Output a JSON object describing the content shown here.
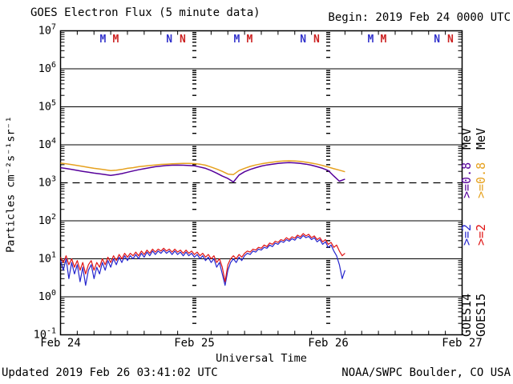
{
  "header": {
    "title": "GOES Electron Flux (5 minute data)",
    "begin_label": "Begin: 2019 Feb 24 0000 UTC"
  },
  "footer": {
    "updated": "Updated 2019 Feb 26 03:41:02 UTC",
    "source": "NOAA/SWPC Boulder, CO USA"
  },
  "colors": {
    "trace_goes15_e08": "#E6A11E",
    "trace_goes14_e08": "#56009B",
    "trace_goes15_e2": "#E01515",
    "trace_goes14_e2": "#2525CD",
    "marker_blue": "#3333CC",
    "marker_red": "#CC2222",
    "axis": "#000000",
    "background": "#FFFFFF"
  },
  "chart_data": {
    "type": "line",
    "title": "GOES Electron Flux (5 minute data)",
    "xlabel": "Universal Time",
    "ylabel": "Particles cm⁻²s⁻¹sr⁻¹",
    "x_axis": {
      "label": "Universal Time",
      "start": "2019 Feb 24 0000 UTC",
      "hours_span": 72,
      "tick_labels": [
        "Feb 24",
        "Feb 25",
        "Feb 26",
        "Feb 27"
      ],
      "day_boundary_hours": [
        24,
        48
      ],
      "minor_tick_hours": 3
    },
    "y_axis": {
      "scale": "log",
      "unit_label": "Particles cm⁻²s⁻¹sr⁻¹",
      "exponent_min": -1,
      "exponent_max": 7,
      "tick_exponents": [
        7,
        6,
        5,
        4,
        3,
        2,
        1,
        0,
        -1
      ]
    },
    "threshold_line": {
      "value": 1000,
      "style": "dashed"
    },
    "top_markers": [
      {
        "hour": 7.6,
        "letter": "M",
        "color_key": "marker_blue"
      },
      {
        "hour": 9.9,
        "letter": "M",
        "color_key": "marker_red"
      },
      {
        "hour": 19.5,
        "letter": "N",
        "color_key": "marker_blue"
      },
      {
        "hour": 21.9,
        "letter": "N",
        "color_key": "marker_red"
      },
      {
        "hour": 31.6,
        "letter": "M",
        "color_key": "marker_blue"
      },
      {
        "hour": 33.9,
        "letter": "M",
        "color_key": "marker_red"
      },
      {
        "hour": 43.5,
        "letter": "N",
        "color_key": "marker_blue"
      },
      {
        "hour": 45.9,
        "letter": "N",
        "color_key": "marker_red"
      },
      {
        "hour": 55.6,
        "letter": "M",
        "color_key": "marker_blue"
      },
      {
        "hour": 57.9,
        "letter": "M",
        "color_key": "marker_red"
      },
      {
        "hour": 67.5,
        "letter": "N",
        "color_key": "marker_blue"
      },
      {
        "hour": 69.9,
        "letter": "N",
        "color_key": "marker_red"
      }
    ],
    "series": [
      {
        "name": "GOES14 >=0.8 MeV",
        "color_key": "trace_goes14_e08",
        "t_start_hours": 0,
        "t_step_hours": 1,
        "values": [
          2500,
          2380,
          2250,
          2120,
          2000,
          1900,
          1800,
          1720,
          1650,
          1570,
          1650,
          1750,
          1900,
          2050,
          2200,
          2350,
          2500,
          2650,
          2750,
          2850,
          2900,
          2920,
          2900,
          2850,
          2800,
          2600,
          2400,
          2100,
          1800,
          1500,
          1300,
          1050,
          1600,
          1950,
          2250,
          2500,
          2750,
          2950,
          3100,
          3250,
          3350,
          3400,
          3350,
          3250,
          3100,
          2900,
          2650,
          2400,
          2100,
          1500,
          1100,
          1250
        ]
      },
      {
        "name": "GOES15 >=0.8 MeV",
        "color_key": "trace_goes15_e08",
        "t_start_hours": 0,
        "t_step_hours": 1,
        "values": [
          3300,
          3150,
          3000,
          2850,
          2700,
          2550,
          2400,
          2300,
          2200,
          2100,
          2150,
          2250,
          2400,
          2500,
          2650,
          2750,
          2850,
          2950,
          3050,
          3100,
          3150,
          3200,
          3250,
          3250,
          3200,
          3100,
          2900,
          2600,
          2300,
          2000,
          1700,
          1650,
          2100,
          2400,
          2700,
          2950,
          3150,
          3350,
          3500,
          3650,
          3750,
          3800,
          3750,
          3650,
          3500,
          3300,
          3100,
          2850,
          2600,
          2350,
          2150,
          1950
        ]
      },
      {
        "name": "GOES14 >=2 MeV",
        "color_key": "trace_goes14_e2",
        "t_start_hours": 0,
        "t_step_hours": 0.5,
        "values": [
          9,
          5,
          10,
          3,
          8,
          4,
          7,
          2.5,
          6,
          2,
          5,
          7,
          3,
          6,
          4,
          8,
          5,
          9,
          6,
          10,
          7,
          11,
          8,
          12,
          9,
          12,
          10,
          13,
          10,
          14,
          11,
          15,
          12,
          16,
          13,
          16,
          14,
          17,
          14,
          16,
          13,
          16,
          13,
          15,
          12,
          15,
          12,
          14,
          11,
          13,
          10,
          12,
          9,
          11,
          8,
          10,
          6,
          8,
          4,
          2,
          5,
          8,
          10,
          8,
          11,
          9,
          12,
          14,
          13,
          16,
          15,
          18,
          17,
          20,
          19,
          23,
          21,
          26,
          24,
          29,
          27,
          32,
          29,
          34,
          31,
          38,
          34,
          41,
          36,
          39,
          32,
          36,
          28,
          32,
          24,
          28,
          20,
          23,
          16,
          12,
          7,
          3,
          5
        ]
      },
      {
        "name": "GOES15 >=2 MeV",
        "color_key": "trace_goes15_e2",
        "t_start_hours": 0,
        "t_step_hours": 0.5,
        "values": [
          11,
          8,
          12,
          7,
          10,
          6,
          9,
          5,
          8,
          4,
          7,
          9,
          5,
          8,
          6,
          10,
          7,
          11,
          8,
          12,
          9,
          13,
          10,
          14,
          11,
          14,
          12,
          15,
          12,
          16,
          13,
          17,
          14,
          18,
          15,
          18,
          16,
          19,
          16,
          18,
          15,
          18,
          15,
          17,
          14,
          17,
          14,
          16,
          13,
          15,
          12,
          14,
          11,
          13,
          10,
          12,
          8,
          10,
          6,
          2.5,
          7,
          10,
          12,
          10,
          13,
          11,
          14,
          16,
          15,
          18,
          17,
          20,
          19,
          23,
          21,
          26,
          24,
          29,
          27,
          32,
          30,
          36,
          32,
          38,
          35,
          42,
          38,
          46,
          40,
          44,
          36,
          40,
          32,
          36,
          28,
          32,
          24,
          27,
          20,
          23,
          16,
          12,
          14
        ]
      }
    ],
    "legend": {
      "columns": [
        {
          "satellite": "GOES14",
          "e2_label": ">=2",
          "e08_label": ">=0.8",
          "unit_label": "MeV",
          "e2_color_key": "trace_goes14_e2",
          "e08_color_key": "trace_goes14_e08"
        },
        {
          "satellite": "GOES15",
          "e2_label": ">=2",
          "e08_label": ">=0.8",
          "unit_label": "MeV",
          "e2_color_key": "trace_goes15_e2",
          "e08_color_key": "trace_goes15_e08"
        }
      ]
    }
  }
}
